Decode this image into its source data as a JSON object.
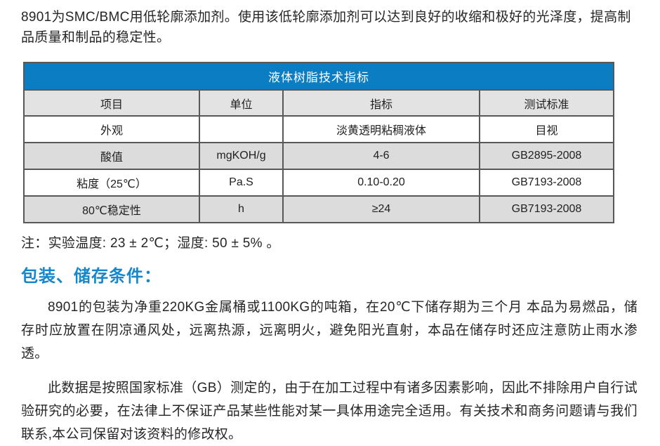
{
  "intro": {
    "text": "8901为SMC/BMC用低轮廓添加剂。使用该低轮廓添加剂可以达到良好的收缩和极好的光泽度，提高制品质量和制品的稳定性。"
  },
  "table": {
    "title": "液体树脂技术指标",
    "columns": [
      "项目",
      "单位",
      "指标",
      "测试标准"
    ],
    "rows": [
      [
        "外观",
        "",
        "淡黄透明粘稠液体",
        "目视"
      ],
      [
        "酸值",
        "mgKOH/g",
        "4-6",
        "GB2895-2008"
      ],
      [
        "粘度（25℃）",
        "Pa.S",
        "0.10-0.20",
        "GB7193-2008"
      ],
      [
        "80℃稳定性",
        "h",
        "≥24",
        "GB7193-2008"
      ]
    ]
  },
  "note": "注：实验温度: 23 ± 2℃；湿度: 50 ± 5% 。",
  "section": {
    "heading": "包装、储存条件：",
    "paragraphs": [
      "8901的包装为净重220KG金属桶或1100KG的吨箱，在20℃下储存期为三个月 本品为易燃品，储存时应放置在阴凉通风处，远离热源，远离明火，避免阳光直射，本品在储存时还应注意防止雨水渗透。",
      "此数据是按照国家标准（GB）测定的，由于在加工过程中有诸多因素影响，因此不排除用户自行试验研究的必要，在法律上不保证产品某些性能对某一具体用途完全适用。有关技术和商务问题请与我们联系,本公司保留对该资料的修改权。"
    ]
  },
  "colors": {
    "table_title_bg": "#0b7dc2",
    "table_title_text": "#ffffff",
    "table_header_row_bg": "#e3e3e3",
    "table_alt_row_bg": "#dcdcdc",
    "table_border": "#57585a",
    "section_heading_text": "#1787cc",
    "body_text": "#262626"
  }
}
